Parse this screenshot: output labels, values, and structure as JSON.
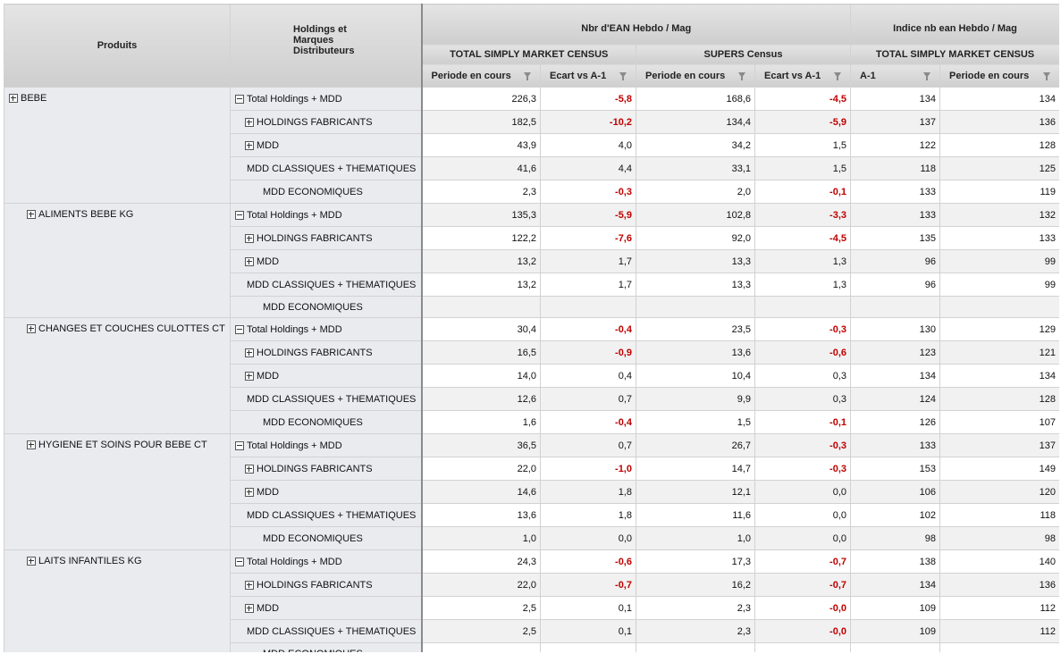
{
  "headers": {
    "produits": "Produits",
    "holdings": [
      "Holdings et",
      "Marques",
      "Distributeurs"
    ],
    "group1": "Nbr d'EAN Hebdo / Mag",
    "group2": "Indice nb ean Hebdo / Mag",
    "sub1": "TOTAL SIMPLY MARKET CENSUS",
    "sub2": "SUPERS Census",
    "sub3": "TOTAL SIMPLY MARKET CENSUS",
    "cols": [
      "Periode en cours",
      "Ecart vs A-1",
      "Periode en cours",
      "Ecart vs A-1",
      "A-1",
      "Periode en cours"
    ]
  },
  "icons": {
    "expand": "plus-box-icon",
    "collapse": "minus-box-icon",
    "filter": "filter-icon"
  },
  "colors": {
    "negative": "#c00000",
    "header": "#d8d8d8",
    "row_label_bg": "#e9ebef"
  },
  "groups": [
    {
      "product": "BEBE",
      "level": 0,
      "rows": [
        {
          "label": "Total Holdings + MDD",
          "icon": "minus",
          "values": [
            "226,3",
            "-5,8",
            "168,6",
            "-4,5",
            "134",
            "134"
          ]
        },
        {
          "label": "HOLDINGS FABRICANTS",
          "icon": "plus",
          "values": [
            "182,5",
            "-10,2",
            "134,4",
            "-5,9",
            "137",
            "136"
          ]
        },
        {
          "label": "MDD",
          "icon": "plus",
          "values": [
            "43,9",
            "4,0",
            "34,2",
            "1,5",
            "122",
            "128"
          ]
        },
        {
          "label": "MDD CLASSIQUES + THEMATIQUES",
          "icon": "",
          "values": [
            "41,6",
            "4,4",
            "33,1",
            "1,5",
            "118",
            "125"
          ]
        },
        {
          "label": "MDD ECONOMIQUES",
          "icon": "",
          "values": [
            "2,3",
            "-0,3",
            "2,0",
            "-0,1",
            "133",
            "119"
          ]
        }
      ]
    },
    {
      "product": "ALIMENTS BEBE KG",
      "level": 1,
      "rows": [
        {
          "label": "Total Holdings + MDD",
          "icon": "minus",
          "values": [
            "135,3",
            "-5,9",
            "102,8",
            "-3,3",
            "133",
            "132"
          ]
        },
        {
          "label": "HOLDINGS FABRICANTS",
          "icon": "plus",
          "values": [
            "122,2",
            "-7,6",
            "92,0",
            "-4,5",
            "135",
            "133"
          ]
        },
        {
          "label": "MDD",
          "icon": "plus",
          "values": [
            "13,2",
            "1,7",
            "13,3",
            "1,3",
            "96",
            "99"
          ]
        },
        {
          "label": "MDD CLASSIQUES + THEMATIQUES",
          "icon": "",
          "values": [
            "13,2",
            "1,7",
            "13,3",
            "1,3",
            "96",
            "99"
          ]
        },
        {
          "label": "MDD ECONOMIQUES",
          "icon": "",
          "values": [
            "",
            "",
            "",
            "",
            "",
            ""
          ]
        }
      ]
    },
    {
      "product": "CHANGES ET COUCHES CULOTTES CT",
      "level": 1,
      "rows": [
        {
          "label": "Total Holdings + MDD",
          "icon": "minus",
          "values": [
            "30,4",
            "-0,4",
            "23,5",
            "-0,3",
            "130",
            "129"
          ]
        },
        {
          "label": "HOLDINGS FABRICANTS",
          "icon": "plus",
          "values": [
            "16,5",
            "-0,9",
            "13,6",
            "-0,6",
            "123",
            "121"
          ]
        },
        {
          "label": "MDD",
          "icon": "plus",
          "values": [
            "14,0",
            "0,4",
            "10,4",
            "0,3",
            "134",
            "134"
          ]
        },
        {
          "label": "MDD CLASSIQUES + THEMATIQUES",
          "icon": "",
          "values": [
            "12,6",
            "0,7",
            "9,9",
            "0,3",
            "124",
            "128"
          ]
        },
        {
          "label": "MDD ECONOMIQUES",
          "icon": "",
          "values": [
            "1,6",
            "-0,4",
            "1,5",
            "-0,1",
            "126",
            "107"
          ]
        }
      ]
    },
    {
      "product": "HYGIENE ET SOINS POUR BEBE CT",
      "level": 1,
      "rows": [
        {
          "label": "Total Holdings + MDD",
          "icon": "minus",
          "values": [
            "36,5",
            "0,7",
            "26,7",
            "-0,3",
            "133",
            "137"
          ]
        },
        {
          "label": "HOLDINGS FABRICANTS",
          "icon": "plus",
          "values": [
            "22,0",
            "-1,0",
            "14,7",
            "-0,3",
            "153",
            "149"
          ]
        },
        {
          "label": "MDD",
          "icon": "plus",
          "values": [
            "14,6",
            "1,8",
            "12,1",
            "0,0",
            "106",
            "120"
          ]
        },
        {
          "label": "MDD CLASSIQUES + THEMATIQUES",
          "icon": "",
          "values": [
            "13,6",
            "1,8",
            "11,6",
            "0,0",
            "102",
            "118"
          ]
        },
        {
          "label": "MDD ECONOMIQUES",
          "icon": "",
          "values": [
            "1,0",
            "0,0",
            "1,0",
            "0,0",
            "98",
            "98"
          ]
        }
      ]
    },
    {
      "product": "LAITS INFANTILES KG",
      "level": 1,
      "rows": [
        {
          "label": "Total Holdings + MDD",
          "icon": "minus",
          "values": [
            "24,3",
            "-0,6",
            "17,3",
            "-0,7",
            "138",
            "140"
          ]
        },
        {
          "label": "HOLDINGS FABRICANTS",
          "icon": "plus",
          "values": [
            "22,0",
            "-0,7",
            "16,2",
            "-0,7",
            "134",
            "136"
          ]
        },
        {
          "label": "MDD",
          "icon": "plus",
          "values": [
            "2,5",
            "0,1",
            "2,3",
            "-0,0",
            "109",
            "112"
          ]
        },
        {
          "label": "MDD CLASSIQUES + THEMATIQUES",
          "icon": "",
          "values": [
            "2,5",
            "0,1",
            "2,3",
            "-0,0",
            "109",
            "112"
          ]
        },
        {
          "label": "MDD ECONOMIQUES",
          "icon": "",
          "values": [
            "",
            "",
            "",
            "",
            "",
            ""
          ]
        }
      ]
    }
  ]
}
